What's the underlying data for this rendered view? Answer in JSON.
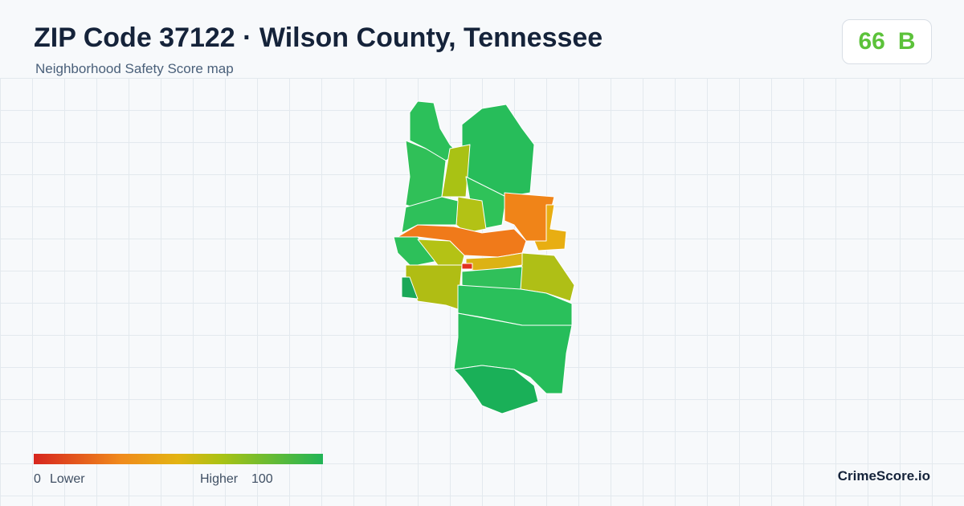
{
  "header": {
    "title": "ZIP Code 37122 · Wilson County, Tennessee",
    "subtitle": "Neighborhood Safety Score map"
  },
  "score": {
    "value": 66,
    "grade": "B"
  },
  "legend": {
    "min": 0,
    "min_label": "Lower",
    "max_label": "Higher",
    "max": 100
  },
  "brand": "CrimeScore.io"
}
